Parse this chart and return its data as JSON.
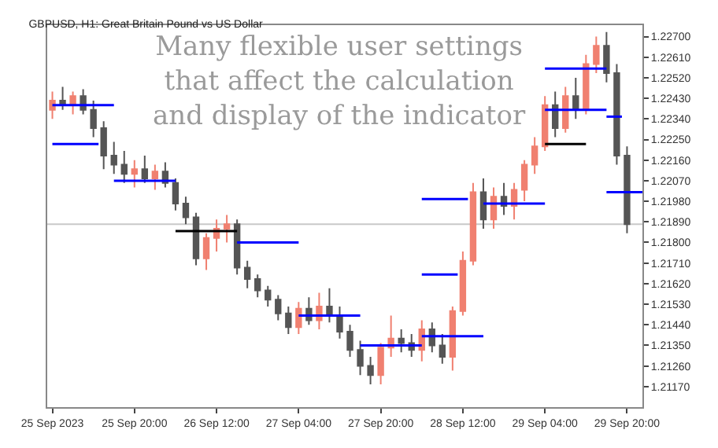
{
  "chart_data": {
    "type": "candlestick",
    "title": "GBPUSD, H1: Great Britain Pound vs US Dollar",
    "annotations": [
      "Many flexible user settings\nthat affect the calculation\nand display of the indicator"
    ],
    "x": [
      "2023-09-25T04:00",
      "2023-09-25T06:00",
      "2023-09-25T08:00",
      "2023-09-25T10:00",
      "2023-09-25T12:00",
      "2023-09-25T14:00",
      "2023-09-25T16:00",
      "2023-09-25T18:00",
      "2023-09-25T20:00",
      "2023-09-25T22:00",
      "2023-09-26T00:00",
      "2023-09-26T02:00",
      "2023-09-26T04:00",
      "2023-09-26T06:00",
      "2023-09-26T08:00",
      "2023-09-26T10:00",
      "2023-09-26T12:00",
      "2023-09-26T14:00",
      "2023-09-26T16:00",
      "2023-09-26T18:00",
      "2023-09-26T20:00",
      "2023-09-26T22:00",
      "2023-09-27T00:00",
      "2023-09-27T02:00",
      "2023-09-27T04:00",
      "2023-09-27T06:00",
      "2023-09-27T08:00",
      "2023-09-27T10:00",
      "2023-09-27T12:00",
      "2023-09-27T14:00",
      "2023-09-27T16:00",
      "2023-09-27T18:00",
      "2023-09-27T20:00",
      "2023-09-27T22:00",
      "2023-09-28T00:00",
      "2023-09-28T02:00",
      "2023-09-28T04:00",
      "2023-09-28T06:00",
      "2023-09-28T08:00",
      "2023-09-28T10:00",
      "2023-09-28T12:00",
      "2023-09-28T14:00",
      "2023-09-28T16:00",
      "2023-09-28T18:00",
      "2023-09-28T20:00",
      "2023-09-28T22:00",
      "2023-09-29T00:00",
      "2023-09-29T02:00",
      "2023-09-29T04:00",
      "2023-09-29T06:00",
      "2023-09-29T08:00",
      "2023-09-29T10:00",
      "2023-09-29T12:00",
      "2023-09-29T14:00",
      "2023-09-29T16:00",
      "2023-09-29T18:00",
      "2023-09-29T20:00"
    ],
    "ohlc": [
      [
        1.2238,
        1.2246,
        1.2234,
        1.2242
      ],
      [
        1.2242,
        1.2248,
        1.2238,
        1.224
      ],
      [
        1.224,
        1.2246,
        1.2236,
        1.2244
      ],
      [
        1.2244,
        1.2247,
        1.2236,
        1.2238
      ],
      [
        1.2238,
        1.2242,
        1.2226,
        1.223
      ],
      [
        1.223,
        1.2233,
        1.2212,
        1.2218
      ],
      [
        1.2218,
        1.2224,
        1.221,
        1.2214
      ],
      [
        1.2214,
        1.222,
        1.2206,
        1.221
      ],
      [
        1.221,
        1.2216,
        1.2204,
        1.2212
      ],
      [
        1.2212,
        1.2218,
        1.2206,
        1.2208
      ],
      [
        1.2208,
        1.2214,
        1.2203,
        1.2211
      ],
      [
        1.2211,
        1.2215,
        1.2204,
        1.2206
      ],
      [
        1.2206,
        1.2208,
        1.2194,
        1.2197
      ],
      [
        1.2197,
        1.22,
        1.2188,
        1.2191
      ],
      [
        1.2191,
        1.2193,
        1.217,
        1.2173
      ],
      [
        1.2173,
        1.2184,
        1.2168,
        1.2182
      ],
      [
        1.2182,
        1.219,
        1.2176,
        1.2186
      ],
      [
        1.2186,
        1.2192,
        1.218,
        1.2188
      ],
      [
        1.2188,
        1.219,
        1.2166,
        1.2169
      ],
      [
        1.2169,
        1.2172,
        1.216,
        1.2164
      ],
      [
        1.2164,
        1.2166,
        1.2156,
        1.2159
      ],
      [
        1.2159,
        1.2161,
        1.2152,
        1.2155
      ],
      [
        1.2155,
        1.2157,
        1.2146,
        1.2149
      ],
      [
        1.2149,
        1.2152,
        1.214,
        1.2143
      ],
      [
        1.2143,
        1.2154,
        1.214,
        1.2151
      ],
      [
        1.2151,
        1.2156,
        1.2144,
        1.2146
      ],
      [
        1.2146,
        1.2158,
        1.2142,
        1.2152
      ],
      [
        1.2152,
        1.216,
        1.2145,
        1.2148
      ],
      [
        1.2148,
        1.2152,
        1.2138,
        1.2141
      ],
      [
        1.2141,
        1.2144,
        1.213,
        1.2133
      ],
      [
        1.2133,
        1.2137,
        1.2122,
        1.2126
      ],
      [
        1.2126,
        1.213,
        1.2118,
        1.2122
      ],
      [
        1.2122,
        1.2136,
        1.2118,
        1.2134
      ],
      [
        1.2134,
        1.2148,
        1.213,
        1.2138
      ],
      [
        1.2138,
        1.2142,
        1.2132,
        1.2136
      ],
      [
        1.2136,
        1.214,
        1.213,
        1.2133
      ],
      [
        1.2133,
        1.2146,
        1.2128,
        1.2142
      ],
      [
        1.2142,
        1.2145,
        1.2132,
        1.2135
      ],
      [
        1.2135,
        1.214,
        1.2127,
        1.213
      ],
      [
        1.213,
        1.2152,
        1.2124,
        1.215
      ],
      [
        1.215,
        1.2176,
        1.2148,
        1.2172
      ],
      [
        1.2172,
        1.2206,
        1.217,
        1.2202
      ],
      [
        1.2202,
        1.2208,
        1.2186,
        1.219
      ],
      [
        1.219,
        1.2204,
        1.2186,
        1.22
      ],
      [
        1.22,
        1.2206,
        1.2192,
        1.2196
      ],
      [
        1.2196,
        1.2206,
        1.219,
        1.2203
      ],
      [
        1.2203,
        1.2216,
        1.2198,
        1.2214
      ],
      [
        1.2214,
        1.2226,
        1.221,
        1.2222
      ],
      [
        1.2222,
        1.2244,
        1.222,
        1.224
      ],
      [
        1.224,
        1.2246,
        1.2226,
        1.223
      ],
      [
        1.223,
        1.2248,
        1.2228,
        1.2244
      ],
      [
        1.2244,
        1.2252,
        1.2234,
        1.2238
      ],
      [
        1.2238,
        1.2262,
        1.2236,
        1.2258
      ],
      [
        1.2258,
        1.227,
        1.2254,
        1.2266
      ],
      [
        1.2266,
        1.2272,
        1.225,
        1.2254
      ],
      [
        1.2254,
        1.2258,
        1.2214,
        1.2218
      ],
      [
        1.2218,
        1.2222,
        1.2184,
        1.2188
      ]
    ],
    "colors": [
      "#f08070",
      "#555555",
      "#f08070",
      "#555555",
      "#555555",
      "#555555",
      "#555555",
      "#555555",
      "#f08070",
      "#555555",
      "#f08070",
      "#555555",
      "#555555",
      "#555555",
      "#555555",
      "#f08070",
      "#f08070",
      "#f08070",
      "#555555",
      "#555555",
      "#555555",
      "#555555",
      "#555555",
      "#555555",
      "#f08070",
      "#555555",
      "#f08070",
      "#555555",
      "#555555",
      "#555555",
      "#555555",
      "#555555",
      "#f08070",
      "#f08070",
      "#555555",
      "#555555",
      "#f08070",
      "#555555",
      "#555555",
      "#f08070",
      "#f08070",
      "#f08070",
      "#555555",
      "#f08070",
      "#555555",
      "#f08070",
      "#f08070",
      "#f08070",
      "#f08070",
      "#555555",
      "#f08070",
      "#555555",
      "#f08070",
      "#f08070",
      "#555555",
      "#555555",
      "#555555"
    ],
    "series": [
      {
        "type": "line",
        "color": "#0000ff",
        "x": [
          "2023-09-25T04:00",
          "2023-09-25T16:00"
        ],
        "values": [
          1.224,
          1.224
        ]
      },
      {
        "type": "line",
        "color": "#0000ff",
        "x": [
          "2023-09-25T04:00",
          "2023-09-25T13:00"
        ],
        "values": [
          1.2223,
          1.2223
        ]
      },
      {
        "type": "line",
        "color": "#0000ff",
        "x": [
          "2023-09-25T16:00",
          "2023-09-26T04:00"
        ],
        "values": [
          1.2207,
          1.2207
        ]
      },
      {
        "type": "line",
        "color": "#000000",
        "x": [
          "2023-09-26T04:00",
          "2023-09-26T16:00"
        ],
        "values": [
          1.2185,
          1.2185
        ]
      },
      {
        "type": "line",
        "color": "#0000ff",
        "x": [
          "2023-09-26T16:00",
          "2023-09-27T04:00"
        ],
        "values": [
          1.218,
          1.218
        ]
      },
      {
        "type": "line",
        "color": "#0000ff",
        "x": [
          "2023-09-27T04:00",
          "2023-09-27T16:00"
        ],
        "values": [
          1.2148,
          1.2148
        ]
      },
      {
        "type": "line",
        "color": "#0000ff",
        "x": [
          "2023-09-27T16:00",
          "2023-09-28T04:00"
        ],
        "values": [
          1.2135,
          1.2135
        ]
      },
      {
        "type": "line",
        "color": "#0000ff",
        "x": [
          "2023-09-28T04:00",
          "2023-09-28T16:00"
        ],
        "values": [
          1.2139,
          1.2139
        ]
      },
      {
        "type": "line",
        "color": "#0000ff",
        "x": [
          "2023-09-28T04:00",
          "2023-09-28T11:00"
        ],
        "values": [
          1.2166,
          1.2166
        ]
      },
      {
        "type": "line",
        "color": "#0000ff",
        "x": [
          "2023-09-28T04:00",
          "2023-09-28T13:00"
        ],
        "values": [
          1.2199,
          1.2199
        ]
      },
      {
        "type": "line",
        "color": "#0000ff",
        "x": [
          "2023-09-28T16:00",
          "2023-09-29T04:00"
        ],
        "values": [
          1.2197,
          1.2197
        ]
      },
      {
        "type": "line",
        "color": "#000000",
        "x": [
          "2023-09-29T04:00",
          "2023-09-29T12:00"
        ],
        "values": [
          1.2223,
          1.2223
        ]
      },
      {
        "type": "line",
        "color": "#0000ff",
        "x": [
          "2023-09-29T04:00",
          "2023-09-29T16:00"
        ],
        "values": [
          1.2238,
          1.2238
        ]
      },
      {
        "type": "line",
        "color": "#0000ff",
        "x": [
          "2023-09-29T04:00",
          "2023-09-29T16:00"
        ],
        "values": [
          1.2256,
          1.2256
        ]
      },
      {
        "type": "line",
        "color": "#0000ff",
        "x": [
          "2023-09-29T16:00",
          "2023-09-29T19:00"
        ],
        "values": [
          1.2235,
          1.2235
        ]
      },
      {
        "type": "line",
        "color": "#0000ff",
        "x": [
          "2023-09-29T16:00",
          "2023-09-29T23:00"
        ],
        "values": [
          1.2202,
          1.2202
        ]
      }
    ],
    "ref_lines": [
      {
        "axis": "y",
        "value": 1.2188,
        "color": "#c8c8c8"
      }
    ],
    "xlim": [
      "2023-09-25T03:00",
      "2023-09-29T23:00"
    ],
    "xticks": [
      {
        "value": "2023-09-25T04:00",
        "label": "25 Sep 2023"
      },
      {
        "value": "2023-09-25T20:00",
        "label": "25 Sep 20:00"
      },
      {
        "value": "2023-09-26T12:00",
        "label": "26 Sep 12:00"
      },
      {
        "value": "2023-09-27T04:00",
        "label": "27 Sep 04:00"
      },
      {
        "value": "2023-09-27T20:00",
        "label": "27 Sep 20:00"
      },
      {
        "value": "2023-09-28T12:00",
        "label": "28 Sep 12:00"
      },
      {
        "value": "2023-09-29T04:00",
        "label": "29 Sep 04:00"
      },
      {
        "value": "2023-09-29T20:00",
        "label": "29 Sep 20:00"
      }
    ],
    "ylim": [
      1.2108,
      1.2275
    ],
    "yticks": [
      {
        "value": 1.2117,
        "label": "1.21170"
      },
      {
        "value": 1.2126,
        "label": "1.21260"
      },
      {
        "value": 1.2135,
        "label": "1.21350"
      },
      {
        "value": 1.2144,
        "label": "1.21440"
      },
      {
        "value": 1.2153,
        "label": "1.21530"
      },
      {
        "value": 1.2162,
        "label": "1.21620"
      },
      {
        "value": 1.2171,
        "label": "1.21710"
      },
      {
        "value": 1.218,
        "label": "1.21800"
      },
      {
        "value": 1.2189,
        "label": "1.21890"
      },
      {
        "value": 1.2198,
        "label": "1.21980"
      },
      {
        "value": 1.2207,
        "label": "1.22070"
      },
      {
        "value": 1.2216,
        "label": "1.22160"
      },
      {
        "value": 1.2225,
        "label": "1.22250"
      },
      {
        "value": 1.2234,
        "label": "1.22340"
      },
      {
        "value": 1.2243,
        "label": "1.22430"
      },
      {
        "value": 1.2252,
        "label": "1.22520"
      },
      {
        "value": 1.2261,
        "label": "1.22610"
      },
      {
        "value": 1.227,
        "label": "1.22700"
      }
    ],
    "grid": false
  }
}
